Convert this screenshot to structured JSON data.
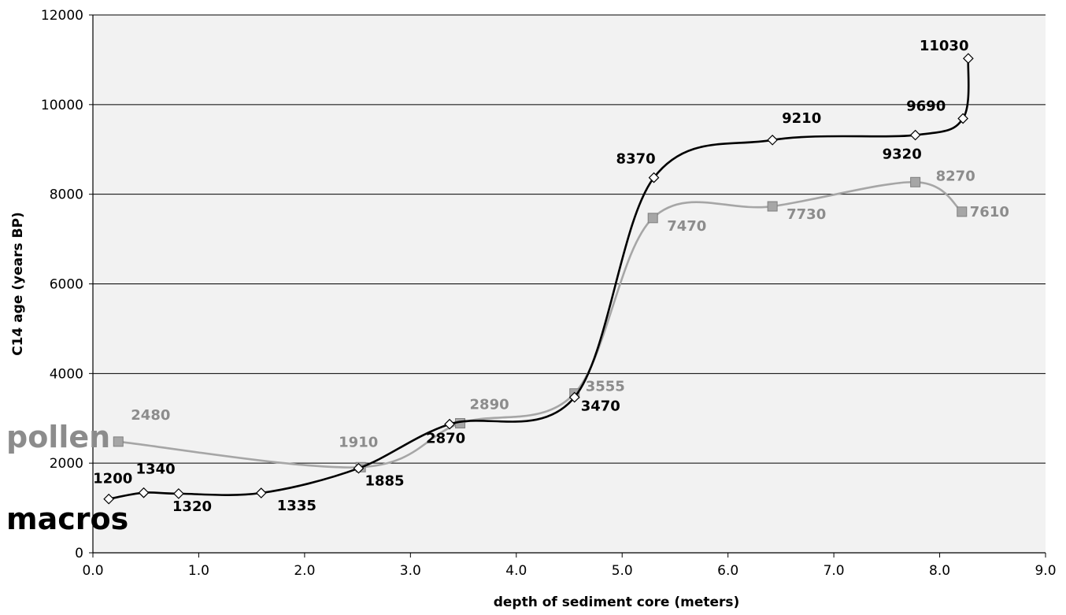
{
  "chart_data": {
    "type": "line",
    "title": "",
    "xlabel": "depth of sediment core (meters)",
    "ylabel": "C14 age (years BP)",
    "xlim": [
      0,
      9
    ],
    "ylim": [
      0,
      12000
    ],
    "x_ticks": [
      "0.0",
      "1.0",
      "2.0",
      "3.0",
      "4.0",
      "5.0",
      "6.0",
      "7.0",
      "8.0",
      "9.0"
    ],
    "y_ticks": [
      "0",
      "2000",
      "4000",
      "6000",
      "8000",
      "10000",
      "12000"
    ],
    "grid": "horizontal",
    "legend": "none",
    "plot_background": "#f2f2f2",
    "series": [
      {
        "name": "macros",
        "color": "#000000",
        "label_color": "#000000",
        "marker": "diamond",
        "label_weight": "bold",
        "x": [
          0.15,
          0.48,
          0.81,
          1.59,
          2.51,
          3.37,
          4.55,
          5.3,
          6.42,
          7.77,
          8.22,
          8.27
        ],
        "y": [
          1200,
          1340,
          1320,
          1335,
          1885,
          2870,
          3470,
          8370,
          9210,
          9320,
          9690,
          11030
        ],
        "labels": [
          "1200",
          "1340",
          "1320",
          "1335",
          "1885",
          "2870",
          "3470",
          "8370",
          "9210",
          "9320",
          "9690",
          "11030"
        ]
      },
      {
        "name": "pollen",
        "color": "#a6a6a6",
        "label_color": "#8c8c8c",
        "marker": "square",
        "x": [
          0.24,
          2.53,
          3.47,
          4.55,
          5.29,
          6.42,
          7.77,
          8.21
        ],
        "y": [
          2480,
          1910,
          2890,
          3555,
          7470,
          7730,
          8270,
          7610
        ],
        "labels": [
          "2480",
          "1910",
          "2890",
          "3555",
          "7470",
          "7730",
          "8270",
          "7610"
        ]
      }
    ]
  }
}
